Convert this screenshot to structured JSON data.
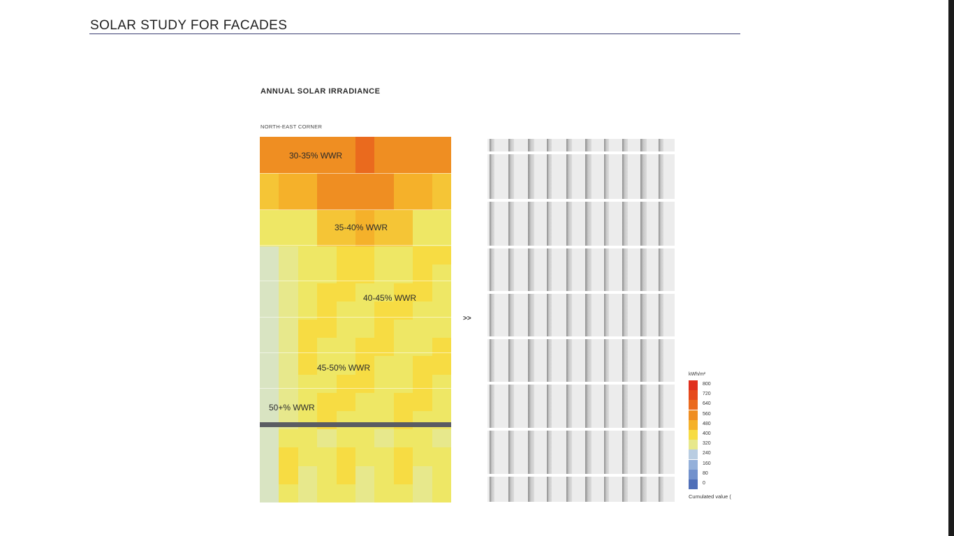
{
  "page": {
    "title": "SOLAR STUDY FOR FACADES"
  },
  "study": {
    "title": "ANNUAL SOLAR IRRADIANCE",
    "corner": "NORTH-EAST CORNER",
    "arrow": ">>",
    "wwr_labels": [
      "30-35% WWR",
      "35-40% WWR",
      "40-45% WWR",
      "45-50% WWR",
      "50+% WWR"
    ]
  },
  "legend": {
    "unit": "kWh/m²",
    "note": "Cumulated value (",
    "entries": [
      {
        "value": "800",
        "color": "#e0301e"
      },
      {
        "value": "720",
        "color": "#e64a1c"
      },
      {
        "value": "640",
        "color": "#ea6a1e"
      },
      {
        "value": "560",
        "color": "#ef8e22"
      },
      {
        "value": "480",
        "color": "#f5b12a"
      },
      {
        "value": "400",
        "color": "#f7dc43"
      },
      {
        "value": "320",
        "color": "#e7e88c"
      },
      {
        "value": "240",
        "color": "#b9cde2"
      },
      {
        "value": "160",
        "color": "#94b0da"
      },
      {
        "value": "80",
        "color": "#7291cc"
      },
      {
        "value": "0",
        "color": "#4f6fb8"
      }
    ]
  }
}
